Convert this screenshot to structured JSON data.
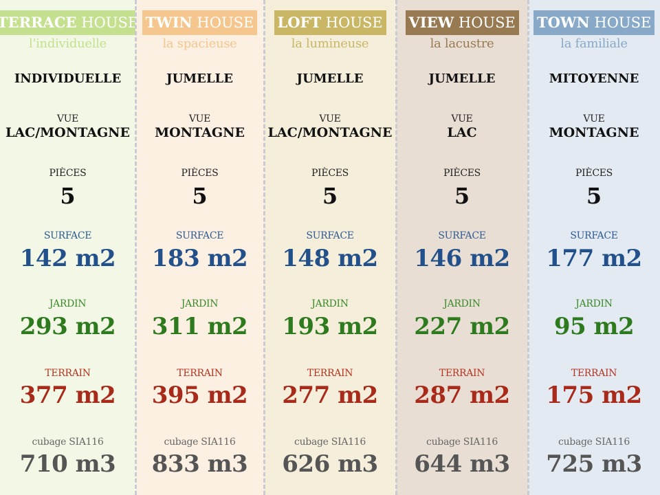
{
  "labels": {
    "vue": "VUE",
    "pieces": "PIÈCES",
    "surface": "SURFACE",
    "jardin": "JARDIN",
    "terrain": "TERRAIN",
    "cubage": "cubage SIA116"
  },
  "houses": [
    {
      "name_bold": "TERRACE",
      "name_light": "HOUSE",
      "subtitle": "l'individuelle",
      "type": "INDIVIDUELLE",
      "vue": "LAC/MONTAGNE",
      "pieces": "5",
      "surface": "142 m2",
      "jardin": "293 m2",
      "terrain": "377 m2",
      "cubage": "710 m3",
      "accent": "#c5e08f",
      "bg": "#f3f8e6"
    },
    {
      "name_bold": "TWIN",
      "name_light": "HOUSE",
      "subtitle": "la spacieuse",
      "type": "JUMELLE",
      "vue": "MONTAGNE",
      "pieces": "5",
      "surface": "183 m2",
      "jardin": "311 m2",
      "terrain": "395 m2",
      "cubage": "833 m3",
      "accent": "#f5c68d",
      "bg": "#fcf0e3"
    },
    {
      "name_bold": "LOFT",
      "name_light": "HOUSE",
      "subtitle": "la lumineuse",
      "type": "JUMELLE",
      "vue": "LAC/MONTAGNE",
      "pieces": "5",
      "surface": "148 m2",
      "jardin": "193 m2",
      "terrain": "277 m2",
      "cubage": "626 m3",
      "accent": "#c9b766",
      "bg": "#f4eedb"
    },
    {
      "name_bold": "VIEW",
      "name_light": "HOUSE",
      "subtitle": "la lacustre",
      "type": "JUMELLE",
      "vue": "LAC",
      "pieces": "5",
      "surface": "146 m2",
      "jardin": "227 m2",
      "terrain": "287 m2",
      "cubage": "644 m3",
      "accent": "#987a52",
      "bg": "#e9ded3"
    },
    {
      "name_bold": "TOWN",
      "name_light": "HOUSE",
      "subtitle": "la familiale",
      "type": "MITOYENNE",
      "vue": "MONTAGNE",
      "pieces": "5",
      "surface": "177 m2",
      "jardin": "95 m2",
      "terrain": "175 m2",
      "cubage": "725 m3",
      "accent": "#88aac8",
      "bg": "#e3eaf2"
    }
  ]
}
